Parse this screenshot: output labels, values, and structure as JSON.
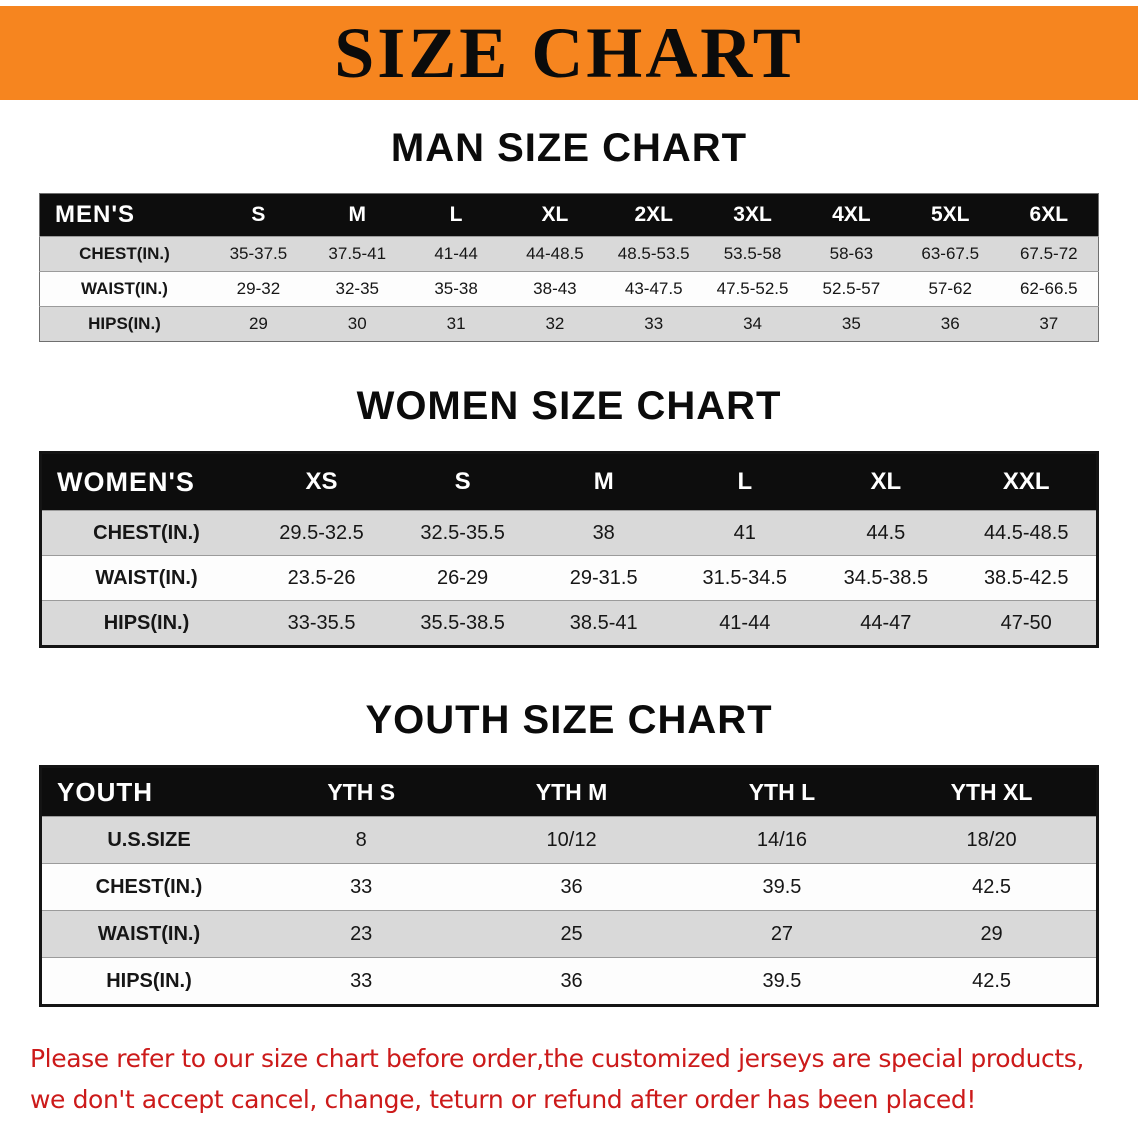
{
  "banner": {
    "title": "SIZE CHART",
    "bg_color": "#f6851f",
    "text_color": "#0b0b0b"
  },
  "sections": [
    {
      "id": "men",
      "title": "MAN SIZE CHART",
      "table": {
        "header_label": "MEN'S",
        "columns": [
          "S",
          "M",
          "L",
          "XL",
          "2XL",
          "3XL",
          "4XL",
          "5XL",
          "6XL"
        ],
        "rows": [
          {
            "label": "CHEST(IN.)",
            "values": [
              "35-37.5",
              "37.5-41",
              "41-44",
              "44-48.5",
              "48.5-53.5",
              "53.5-58",
              "58-63",
              "63-67.5",
              "67.5-72"
            ]
          },
          {
            "label": "WAIST(IN.)",
            "values": [
              "29-32",
              "32-35",
              "35-38",
              "38-43",
              "43-47.5",
              "47.5-52.5",
              "52.5-57",
              "57-62",
              "62-66.5"
            ]
          },
          {
            "label": "HIPS(IN.)",
            "values": [
              "29",
              "30",
              "31",
              "32",
              "33",
              "34",
              "35",
              "36",
              "37"
            ]
          }
        ]
      }
    },
    {
      "id": "women",
      "title": "WOMEN SIZE CHART",
      "table": {
        "header_label": "WOMEN'S",
        "columns": [
          "XS",
          "S",
          "M",
          "L",
          "XL",
          "XXL"
        ],
        "rows": [
          {
            "label": "CHEST(IN.)",
            "values": [
              "29.5-32.5",
              "32.5-35.5",
              "38",
              "41",
              "44.5",
              "44.5-48.5"
            ]
          },
          {
            "label": "WAIST(IN.)",
            "values": [
              "23.5-26",
              "26-29",
              "29-31.5",
              "31.5-34.5",
              "34.5-38.5",
              "38.5-42.5"
            ]
          },
          {
            "label": "HIPS(IN.)",
            "values": [
              "33-35.5",
              "35.5-38.5",
              "38.5-41",
              "41-44",
              "44-47",
              "47-50"
            ]
          }
        ]
      }
    },
    {
      "id": "youth",
      "title": "YOUTH SIZE CHART",
      "table": {
        "header_label": "YOUTH",
        "columns": [
          "YTH S",
          "YTH M",
          "YTH L",
          "YTH XL"
        ],
        "rows": [
          {
            "label": "U.S.SIZE",
            "values": [
              "8",
              "10/12",
              "14/16",
              "18/20"
            ]
          },
          {
            "label": "CHEST(IN.)",
            "values": [
              "33",
              "36",
              "39.5",
              "42.5"
            ]
          },
          {
            "label": "WAIST(IN.)",
            "values": [
              "23",
              "25",
              "27",
              "29"
            ]
          },
          {
            "label": "HIPS(IN.)",
            "values": [
              "33",
              "36",
              "39.5",
              "42.5"
            ]
          }
        ]
      }
    }
  ],
  "footer": {
    "line1": "Please refer to our size chart before order,the customized jerseys are special products,",
    "line2": "we don't accept cancel, change, teturn or refund after order has been placed!",
    "text_color": "#cc1a1a"
  }
}
